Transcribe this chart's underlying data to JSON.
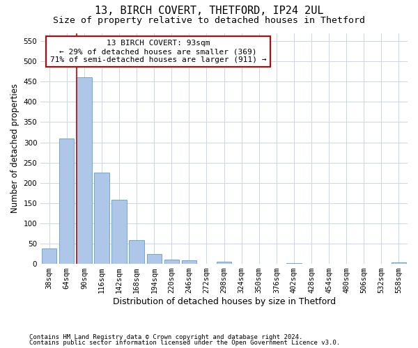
{
  "title": "13, BIRCH COVERT, THETFORD, IP24 2UL",
  "subtitle": "Size of property relative to detached houses in Thetford",
  "xlabel": "Distribution of detached houses by size in Thetford",
  "ylabel": "Number of detached properties",
  "footnote1": "Contains HM Land Registry data © Crown copyright and database right 2024.",
  "footnote2": "Contains public sector information licensed under the Open Government Licence v3.0.",
  "categories": [
    "38sqm",
    "64sqm",
    "90sqm",
    "116sqm",
    "142sqm",
    "168sqm",
    "194sqm",
    "220sqm",
    "246sqm",
    "272sqm",
    "298sqm",
    "324sqm",
    "350sqm",
    "376sqm",
    "402sqm",
    "428sqm",
    "454sqm",
    "480sqm",
    "506sqm",
    "532sqm",
    "558sqm"
  ],
  "values": [
    38,
    310,
    460,
    225,
    158,
    58,
    25,
    10,
    8,
    0,
    5,
    0,
    0,
    0,
    2,
    0,
    0,
    0,
    0,
    0,
    4
  ],
  "bar_color": "#aec6e8",
  "bar_edge_color": "#5a9fd4",
  "property_line_color": "#cc0000",
  "annotation_text": "13 BIRCH COVERT: 93sqm\n← 29% of detached houses are smaller (369)\n71% of semi-detached houses are larger (911) →",
  "annotation_box_color": "#ffffff",
  "annotation_box_edge_color": "#cc0000",
  "background_color": "#ffffff",
  "grid_color": "#c8d8e8",
  "ylim": [
    0,
    570
  ],
  "yticks": [
    0,
    50,
    100,
    150,
    200,
    250,
    300,
    350,
    400,
    450,
    500,
    550
  ],
  "title_fontsize": 11,
  "subtitle_fontsize": 9.5,
  "xlabel_fontsize": 9,
  "ylabel_fontsize": 8.5,
  "footnote_fontsize": 6.5,
  "tick_fontsize": 7.5,
  "annot_fontsize": 8
}
